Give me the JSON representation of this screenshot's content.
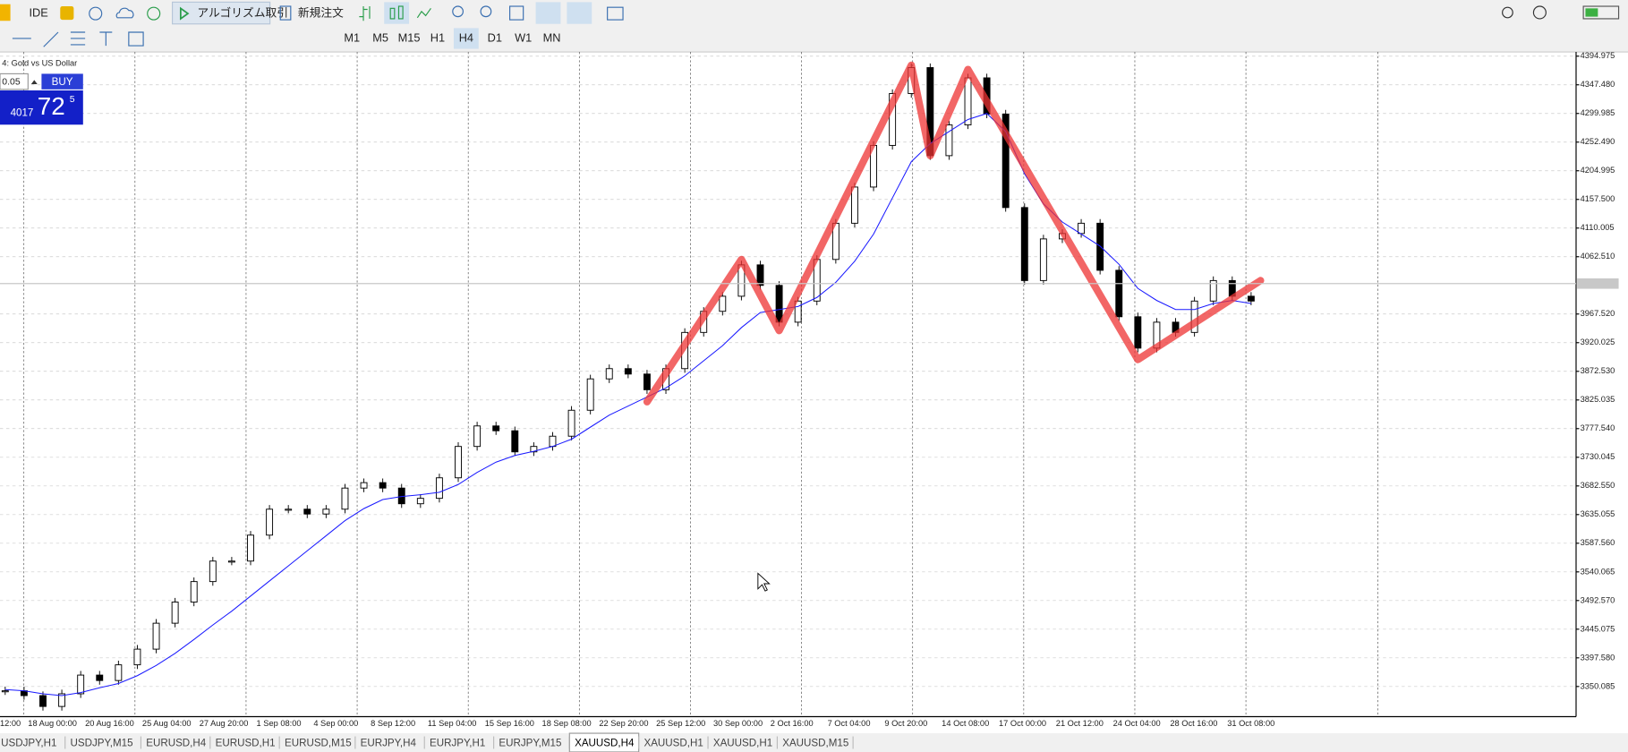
{
  "toolbar": {
    "ide": "IDE",
    "algo": "アルゴリズム取引",
    "new_order": "新規注文"
  },
  "timeframes": [
    "M1",
    "M5",
    "M15",
    "H1",
    "H4",
    "D1",
    "W1",
    "MN"
  ],
  "active_timeframe": "H4",
  "chart": {
    "title": "4: Gold vs US Dollar",
    "ylim": [
      3300.1,
      4401.9
    ],
    "yticks": [
      4394.975,
      {
        "value": 4347.48,
        "label": "4347.480"
      },
      4299.985,
      {
        "value": 4252.49,
        "label": "4252.490"
      },
      4204.995,
      {
        "value": 4157.5,
        "label": "4157.500"
      },
      4110.005,
      {
        "value": 4062.51,
        "label": "4062.510"
      },
      {
        "value": 3967.52,
        "label": "3967.520"
      },
      3920.025,
      {
        "value": 3872.53,
        "label": "3872.530"
      },
      3825.035,
      {
        "value": 3777.54,
        "label": "3777.540"
      },
      3730.045,
      {
        "value": 3682.55,
        "label": "3682.550"
      },
      3635.055,
      {
        "value": 3587.56,
        "label": "3587.560"
      },
      3540.065,
      {
        "value": 3492.57,
        "label": "3492.570"
      },
      3445.075,
      {
        "value": 3397.58,
        "label": "3397.580"
      },
      3350.085
    ],
    "x_labels": [
      "12:00",
      "18 Aug 00:00",
      "20 Aug 16:00",
      "25 Aug 04:00",
      "27 Aug 20:00",
      "1 Sep 08:00",
      "4 Sep 00:00",
      "8 Sep 12:00",
      "11 Sep 04:00",
      "15 Sep 16:00",
      "18 Sep 08:00",
      "22 Sep 20:00",
      "25 Sep 12:00",
      "30 Sep 00:00",
      "2 Oct 16:00",
      "7 Oct 04:00",
      "9 Oct 20:00",
      "14 Oct 08:00",
      "17 Oct 00:00",
      "21 Oct 12:00",
      "24 Oct 04:00",
      "28 Oct 16:00",
      "31 Oct 08:00"
    ],
    "close": [
      3343,
      3335,
      3317,
      3338,
      3369,
      3360,
      3386,
      3412,
      3455,
      3490,
      3524,
      3558,
      3558,
      3601,
      3644,
      3644,
      3636,
      3644,
      3679,
      3688,
      3679,
      3653,
      3662,
      3696,
      3748,
      3782,
      3774,
      3739,
      3748,
      3765,
      3808,
      3860,
      3877,
      3868,
      3842,
      3877,
      3937,
      3972,
      3997,
      4049,
      4015,
      3954,
      3989,
      4058,
      4118,
      4178,
      4247,
      4333,
      4376,
      4230,
      4281,
      4359,
      4299,
      4144,
      4023,
      4092,
      4101,
      4118,
      4040,
      3963,
      3911,
      3954,
      3937,
      3989,
      4023,
      3997,
      3989
    ],
    "ma": [
      3345,
      3343,
      3338,
      3335,
      3340,
      3348,
      3355,
      3368,
      3385,
      3405,
      3428,
      3452,
      3475,
      3500,
      3525,
      3550,
      3575,
      3600,
      3625,
      3645,
      3660,
      3665,
      3668,
      3672,
      3685,
      3705,
      3722,
      3733,
      3740,
      3748,
      3760,
      3780,
      3800,
      3815,
      3830,
      3845,
      3865,
      3890,
      3915,
      3945,
      3970,
      3975,
      3980,
      3995,
      4020,
      4055,
      4100,
      4160,
      4220,
      4250,
      4270,
      4290,
      4300,
      4270,
      4200,
      4150,
      4120,
      4100,
      4080,
      4050,
      4010,
      3990,
      3975,
      3975,
      3985,
      3990,
      3985
    ],
    "ma_color": "#1a1aff",
    "zigzag": {
      "index": [
        34,
        39,
        41,
        48,
        49,
        51,
        60,
        66.5
      ],
      "price": [
        3822,
        4058,
        3940,
        4380,
        4230,
        4373,
        3892,
        4023
      ],
      "color": "#ee3333"
    }
  },
  "trade_panel": {
    "volume": "0.05",
    "side": "BUY",
    "price_big": "4017",
    "price_pips": "72",
    "price_point": "5"
  },
  "tabs": [
    "USDJPY,H1",
    "USDJPY,M15",
    "EURUSD,H4",
    "EURUSD,H1",
    "EURUSD,M15",
    "EURJPY,H4",
    "EURJPY,H1",
    "EURJPY,M15",
    "XAUUSD,H4",
    "XAUUSD,H1",
    "XAUUSD,H1",
    "XAUUSD,M15"
  ],
  "active_tab": 8
}
